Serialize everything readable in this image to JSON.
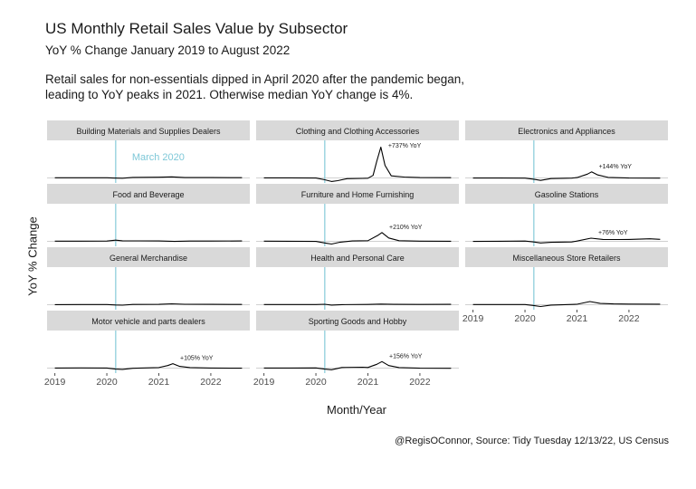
{
  "title": "US Monthly Retail Sales Value by Subsector",
  "subtitle": "YoY % Change January 2019 to August 2022",
  "description": [
    "Retail sales for non-essentials dipped in April 2020 after the pandemic began,",
    "leading to YoY peaks in 2021. Otherwise median YoY change is 4%."
  ],
  "caption": "@RegisOConnor, Source: Tidy Tuesday 12/13/22, US Census",
  "colors": {
    "line": "#000000",
    "marker": "#8fcfdc",
    "strip": "#d9d9d9",
    "baseline": "#d0d0d0"
  },
  "chart_data": {
    "type": "line",
    "title": "US Monthly Retail Sales Value by Subsector",
    "subtitle": "YoY % Change January 2019 to August 2022",
    "xlabel": "Month/Year",
    "ylabel": "YoY % Change",
    "xlim": [
      2018.85,
      2022.75
    ],
    "ylim": [
      -120,
      900
    ],
    "x_ticks": [
      2019,
      2020,
      2021,
      2022
    ],
    "x_tick_labels": [
      "2019",
      "2020",
      "2021",
      "2022"
    ],
    "marker": {
      "x": 2020.17,
      "label": "March 2020"
    },
    "grid": false,
    "facets": [
      {
        "name": "Building Materials and Supplies Dealers",
        "points": [
          [
            2019,
            3
          ],
          [
            2019.5,
            4
          ],
          [
            2020,
            3
          ],
          [
            2020.2,
            -5
          ],
          [
            2020.3,
            -8
          ],
          [
            2020.5,
            12
          ],
          [
            2021,
            16
          ],
          [
            2021.25,
            25
          ],
          [
            2021.5,
            9
          ],
          [
            2022,
            8
          ],
          [
            2022.6,
            5
          ]
        ],
        "annotation": ""
      },
      {
        "name": "Clothing and Clothing Accessories",
        "points": [
          [
            2019,
            2
          ],
          [
            2019.5,
            1
          ],
          [
            2020,
            -2
          ],
          [
            2020.17,
            -45
          ],
          [
            2020.3,
            -85
          ],
          [
            2020.42,
            -65
          ],
          [
            2020.6,
            -18
          ],
          [
            2020.9,
            -12
          ],
          [
            2021,
            -8
          ],
          [
            2021.1,
            60
          ],
          [
            2021.17,
            400
          ],
          [
            2021.25,
            737
          ],
          [
            2021.33,
            300
          ],
          [
            2021.45,
            50
          ],
          [
            2021.7,
            20
          ],
          [
            2022,
            8
          ],
          [
            2022.6,
            5
          ]
        ],
        "annotation": "+737% YoY"
      },
      {
        "name": "Electronics and Appliances",
        "points": [
          [
            2019,
            -2
          ],
          [
            2019.5,
            -3
          ],
          [
            2020,
            -6
          ],
          [
            2020.17,
            -30
          ],
          [
            2020.3,
            -60
          ],
          [
            2020.5,
            -15
          ],
          [
            2020.9,
            -4
          ],
          [
            2021,
            8
          ],
          [
            2021.2,
            90
          ],
          [
            2021.28,
            144
          ],
          [
            2021.4,
            70
          ],
          [
            2021.6,
            12
          ],
          [
            2022,
            -3
          ],
          [
            2022.6,
            -5
          ]
        ],
        "annotation": "+144% YoY"
      },
      {
        "name": "Food and Beverage",
        "points": [
          [
            2019,
            3
          ],
          [
            2019.5,
            3
          ],
          [
            2020,
            5
          ],
          [
            2020.17,
            28
          ],
          [
            2020.3,
            12
          ],
          [
            2020.6,
            10
          ],
          [
            2021,
            7
          ],
          [
            2021.3,
            -3
          ],
          [
            2021.6,
            5
          ],
          [
            2022,
            6
          ],
          [
            2022.6,
            8
          ]
        ],
        "annotation": ""
      },
      {
        "name": "Furniture and Home Furnishing",
        "points": [
          [
            2019,
            3
          ],
          [
            2019.5,
            2
          ],
          [
            2020,
            -3
          ],
          [
            2020.17,
            -40
          ],
          [
            2020.3,
            -65
          ],
          [
            2020.45,
            -25
          ],
          [
            2020.7,
            8
          ],
          [
            2021,
            15
          ],
          [
            2021.2,
            150
          ],
          [
            2021.27,
            210
          ],
          [
            2021.4,
            80
          ],
          [
            2021.6,
            15
          ],
          [
            2022,
            3
          ],
          [
            2022.6,
            2
          ]
        ],
        "annotation": "+210% YoY"
      },
      {
        "name": "Gasoline Stations",
        "points": [
          [
            2019,
            -2
          ],
          [
            2019.5,
            2
          ],
          [
            2020,
            5
          ],
          [
            2020.17,
            -15
          ],
          [
            2020.3,
            -40
          ],
          [
            2020.5,
            -25
          ],
          [
            2020.9,
            -15
          ],
          [
            2021,
            5
          ],
          [
            2021.27,
            76
          ],
          [
            2021.5,
            45
          ],
          [
            2021.8,
            42
          ],
          [
            2022,
            45
          ],
          [
            2022.4,
            60
          ],
          [
            2022.6,
            48
          ]
        ],
        "annotation": "+76% YoY"
      },
      {
        "name": "General Merchandise",
        "points": [
          [
            2019,
            2
          ],
          [
            2019.5,
            3
          ],
          [
            2020,
            3
          ],
          [
            2020.17,
            -8
          ],
          [
            2020.3,
            -12
          ],
          [
            2020.5,
            5
          ],
          [
            2021,
            8
          ],
          [
            2021.25,
            22
          ],
          [
            2021.5,
            10
          ],
          [
            2022,
            7
          ],
          [
            2022.6,
            5
          ]
        ],
        "annotation": ""
      },
      {
        "name": "Health and Personal Care",
        "points": [
          [
            2019,
            3
          ],
          [
            2019.5,
            3
          ],
          [
            2020,
            4
          ],
          [
            2020.17,
            10
          ],
          [
            2020.3,
            -10
          ],
          [
            2020.5,
            2
          ],
          [
            2021,
            5
          ],
          [
            2021.25,
            15
          ],
          [
            2021.5,
            8
          ],
          [
            2022,
            6
          ],
          [
            2022.6,
            7
          ]
        ],
        "annotation": ""
      },
      {
        "name": "Miscellaneous Store Retailers",
        "points": [
          [
            2019,
            3
          ],
          [
            2019.5,
            4
          ],
          [
            2020,
            3
          ],
          [
            2020.17,
            -20
          ],
          [
            2020.3,
            -45
          ],
          [
            2020.5,
            -10
          ],
          [
            2021,
            10
          ],
          [
            2021.25,
            75
          ],
          [
            2021.45,
            30
          ],
          [
            2021.7,
            18
          ],
          [
            2022,
            15
          ],
          [
            2022.6,
            12
          ]
        ],
        "annotation": ""
      },
      {
        "name": "Motor vehicle and parts dealers",
        "points": [
          [
            2019,
            2
          ],
          [
            2019.5,
            3
          ],
          [
            2020,
            2
          ],
          [
            2020.17,
            -25
          ],
          [
            2020.3,
            -30
          ],
          [
            2020.5,
            -5
          ],
          [
            2020.9,
            8
          ],
          [
            2021,
            12
          ],
          [
            2021.17,
            60
          ],
          [
            2021.27,
            105
          ],
          [
            2021.4,
            40
          ],
          [
            2021.6,
            12
          ],
          [
            2022,
            2
          ],
          [
            2022.6,
            -2
          ]
        ],
        "annotation": "+105% YoY"
      },
      {
        "name": "Sporting Goods and Hobby",
        "points": [
          [
            2019,
            2
          ],
          [
            2019.5,
            1
          ],
          [
            2020,
            4
          ],
          [
            2020.17,
            -25
          ],
          [
            2020.3,
            -40
          ],
          [
            2020.5,
            15
          ],
          [
            2020.9,
            20
          ],
          [
            2021,
            15
          ],
          [
            2021.17,
            90
          ],
          [
            2021.27,
            156
          ],
          [
            2021.4,
            60
          ],
          [
            2021.6,
            12
          ],
          [
            2022,
            -3
          ],
          [
            2022.6,
            -5
          ]
        ],
        "annotation": "+156% YoY"
      }
    ]
  }
}
